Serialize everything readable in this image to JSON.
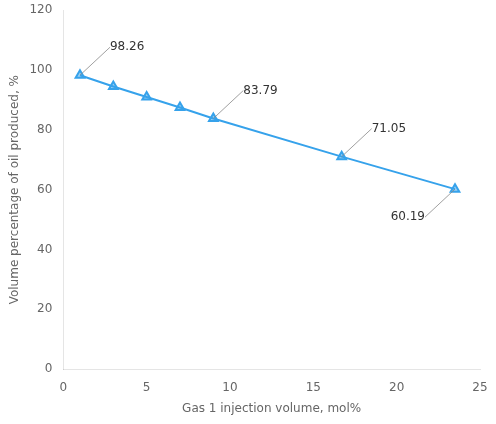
{
  "chart_data": {
    "type": "line",
    "x": [
      1,
      3,
      5,
      7,
      9,
      16.7,
      23.5
    ],
    "values": [
      98.26,
      94.5,
      91.0,
      87.5,
      83.79,
      71.05,
      60.19
    ],
    "marker": "triangle",
    "xlabel": "Gas 1 injection volume, mol%",
    "ylabel": "Volume percentage of oil produced, %",
    "xlim": [
      0,
      25
    ],
    "xticks": [
      0,
      5,
      10,
      15,
      20,
      25
    ],
    "ylim": [
      0,
      120
    ],
    "yticks": [
      0,
      20,
      40,
      60,
      80,
      100,
      120
    ],
    "grid": false,
    "annotations": [
      {
        "x": 1,
        "y": 98.26,
        "label": "98.26"
      },
      {
        "x": 9,
        "y": 83.79,
        "label": "83.79"
      },
      {
        "x": 16.7,
        "y": 71.05,
        "label": "71.05"
      },
      {
        "x": 23.5,
        "y": 60.19,
        "label": "60.19"
      }
    ]
  }
}
